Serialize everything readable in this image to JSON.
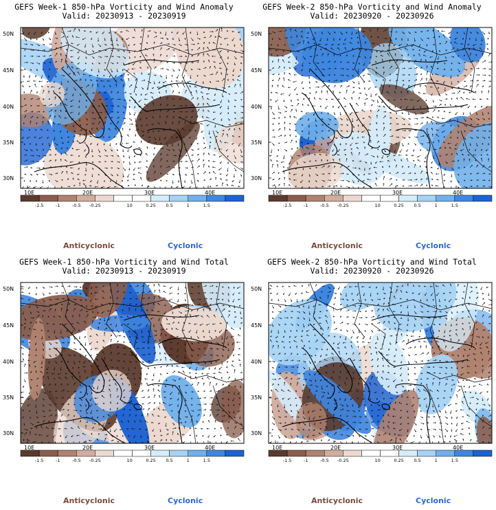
{
  "panels": [
    {
      "title": "GEFS Week-1 850-hPa Vorticity and Wind Anomaly",
      "valid": "Valid: 20230913 - 20230919",
      "kind": "anomaly",
      "seed": 11,
      "labels": {
        "anticyclonic": "Anticyclonic",
        "cyclonic": "Cyclonic"
      }
    },
    {
      "title": "GEFS Week-2 850-hPa Vorticity and Wind Anomaly",
      "valid": "Valid: 20230920 - 20230926",
      "kind": "anomaly",
      "seed": 27,
      "labels": {
        "anticyclonic": "Anticyclonic",
        "cyclonic": "Cyclonic"
      }
    },
    {
      "title": "GEFS Week-1 850-hPa Vorticity and Wind Total",
      "valid": "Valid: 20230913 - 20230919",
      "kind": "total",
      "seed": 43,
      "labels": {
        "anticyclonic": "Anticyclonic",
        "cyclonic": "Cyclonic"
      }
    },
    {
      "title": "GEFS Week-2 850-hPa Vorticity and Wind Total",
      "valid": "Valid: 20230920 - 20230926",
      "kind": "total",
      "seed": 59,
      "labels": {
        "anticyclonic": "Anticyclonic",
        "cyclonic": "Cyclonic"
      }
    }
  ],
  "axes": {
    "x_ticks": [
      "10E",
      "20E",
      "30E",
      "40E"
    ],
    "y_ticks": [
      "50N",
      "45N",
      "40N",
      "35N",
      "30N"
    ]
  },
  "colorbar": {
    "labels": [
      "-1.5",
      "-1",
      "-0.5",
      "-0.25",
      "0.25",
      "0.5",
      "1",
      "1.5"
    ],
    "exponent": "10",
    "colors": [
      "#5c3b2e",
      "#8a5d4c",
      "#b0826f",
      "#d1ad9f",
      "#ecd9d0",
      "#ffffff",
      "#ffffff",
      "#d5ecfa",
      "#a6d3f4",
      "#70b0ec",
      "#3f86df",
      "#1c62d3"
    ]
  }
}
